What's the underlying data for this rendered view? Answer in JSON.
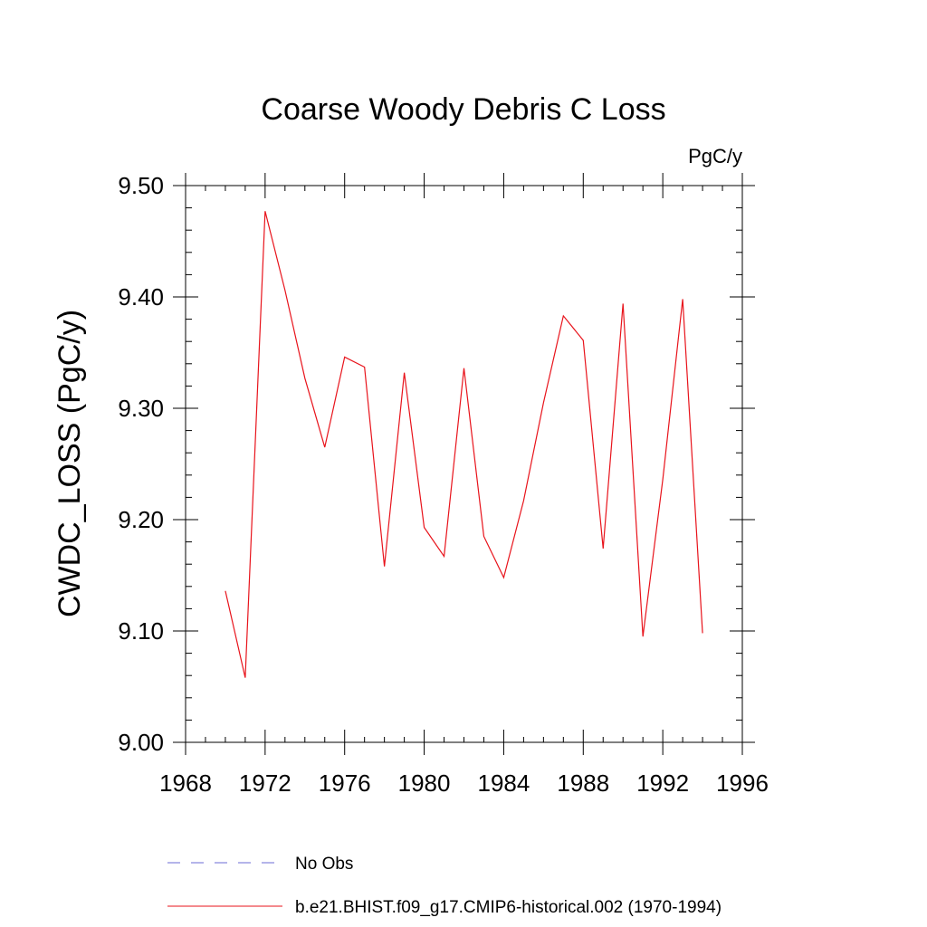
{
  "chart_data": {
    "type": "line",
    "title": "Coarse Woody Debris C Loss",
    "units": "PgC/y",
    "xlabel": "",
    "ylabel": "CWDC_LOSS  (PgC/y)",
    "xlim": [
      1968,
      1996
    ],
    "ylim": [
      9.0,
      9.5
    ],
    "xticks": [
      1968,
      1972,
      1976,
      1980,
      1984,
      1988,
      1992,
      1996
    ],
    "xtick_labels": [
      "1968",
      "1972",
      "1976",
      "1980",
      "1984",
      "1988",
      "1992",
      "1996"
    ],
    "yticks": [
      9.0,
      9.1,
      9.2,
      9.3,
      9.4,
      9.5
    ],
    "ytick_labels": [
      "9.00",
      "9.10",
      "9.20",
      "9.30",
      "9.40",
      "9.50"
    ],
    "grid": false,
    "legend_position": "bottom",
    "series": [
      {
        "name": "No Obs",
        "color": "#6b6bd6",
        "style": "dashed",
        "x": [],
        "values": []
      },
      {
        "name": "b.e21.BHIST.f09_g17.CMIP6-historical.002 (1970-1994)",
        "color": "#e8131b",
        "style": "solid",
        "x": [
          1970,
          1971,
          1972,
          1973,
          1974,
          1975,
          1976,
          1977,
          1978,
          1979,
          1980,
          1981,
          1982,
          1983,
          1984,
          1985,
          1986,
          1987,
          1988,
          1989,
          1990,
          1991,
          1992,
          1993,
          1994
        ],
        "values": [
          9.136,
          9.058,
          9.477,
          9.406,
          9.327,
          9.265,
          9.346,
          9.337,
          9.158,
          9.332,
          9.193,
          9.167,
          9.336,
          9.185,
          9.148,
          9.217,
          9.305,
          9.383,
          9.361,
          9.174,
          9.394,
          9.095,
          9.236,
          9.398,
          9.098
        ]
      }
    ]
  }
}
